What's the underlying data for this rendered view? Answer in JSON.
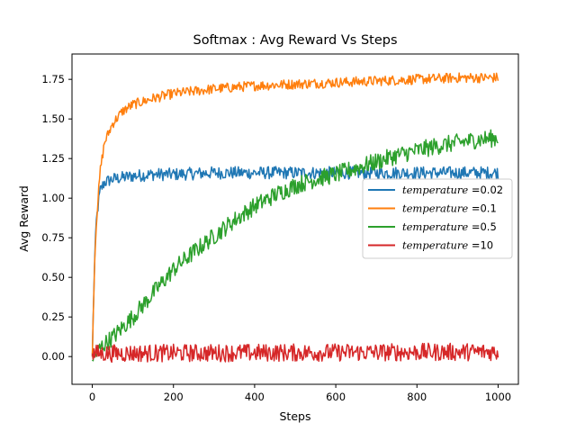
{
  "chart_data": {
    "type": "line",
    "title": "Softmax : Avg Reward Vs Steps",
    "xlabel": "Steps",
    "ylabel": "Avg Reward",
    "xlim": [
      -50,
      1050
    ],
    "ylim": [
      -0.175,
      1.91
    ],
    "x_ticks": [
      0,
      200,
      400,
      600,
      800,
      1000
    ],
    "x_tick_labels": [
      "0",
      "200",
      "400",
      "600",
      "800",
      "1000"
    ],
    "y_ticks": [
      0.0,
      0.25,
      0.5,
      0.75,
      1.0,
      1.25,
      1.5,
      1.75
    ],
    "y_tick_labels": [
      "0.00",
      "0.25",
      "0.50",
      "0.75",
      "1.00",
      "1.25",
      "1.50",
      "1.75"
    ],
    "grid": false,
    "legend_position": "center-right",
    "series": [
      {
        "name": "temperature",
        "legend_value": "=0.02",
        "color": "#1f77b4",
        "x": [
          0,
          5,
          10,
          15,
          20,
          30,
          50,
          75,
          100,
          150,
          200,
          300,
          400,
          500,
          600,
          700,
          800,
          900,
          1000
        ],
        "values": [
          0.0,
          0.55,
          0.85,
          0.97,
          1.05,
          1.1,
          1.12,
          1.13,
          1.14,
          1.15,
          1.15,
          1.16,
          1.16,
          1.16,
          1.16,
          1.16,
          1.16,
          1.16,
          1.16
        ],
        "noise": 0.025
      },
      {
        "name": "temperature",
        "legend_value": "=0.1",
        "color": "#ff7f0e",
        "x": [
          0,
          5,
          10,
          15,
          20,
          30,
          50,
          75,
          100,
          150,
          200,
          300,
          400,
          500,
          600,
          700,
          800,
          900,
          1000
        ],
        "values": [
          0.0,
          0.55,
          0.85,
          1.02,
          1.18,
          1.35,
          1.47,
          1.55,
          1.59,
          1.63,
          1.66,
          1.69,
          1.71,
          1.72,
          1.73,
          1.74,
          1.75,
          1.76,
          1.76
        ],
        "noise": 0.02
      },
      {
        "name": "temperature",
        "legend_value": "=0.5",
        "color": "#2ca02c",
        "x": [
          0,
          10,
          25,
          50,
          100,
          150,
          200,
          250,
          300,
          350,
          400,
          450,
          500,
          550,
          600,
          650,
          700,
          750,
          800,
          850,
          900,
          950,
          1000
        ],
        "values": [
          -0.02,
          0.02,
          0.07,
          0.12,
          0.25,
          0.4,
          0.55,
          0.66,
          0.76,
          0.86,
          0.95,
          1.02,
          1.08,
          1.12,
          1.15,
          1.19,
          1.23,
          1.27,
          1.3,
          1.33,
          1.35,
          1.37,
          1.38
        ],
        "noise": 0.035
      },
      {
        "name": "temperature",
        "legend_value": "=10",
        "color": "#d62728",
        "x": [
          0,
          1000
        ],
        "values": [
          0.02,
          0.03
        ],
        "noise": 0.035
      }
    ]
  }
}
